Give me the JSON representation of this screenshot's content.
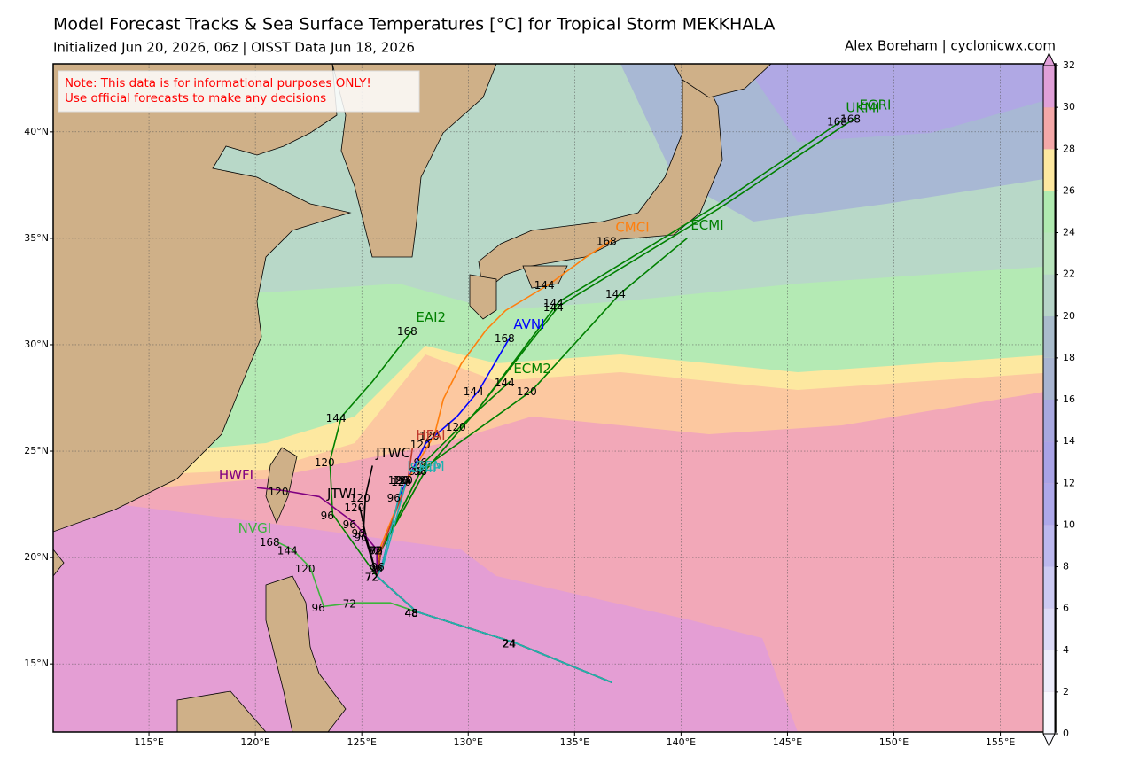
{
  "title": "Model Forecast Tracks & Sea Surface Temperatures [°C] for Tropical Storm MEKKHALA",
  "subtitle": "Initialized Jun 20, 2026, 06z | OISST Data Jun 18, 2026",
  "credit": "Alex Boreham | cyclonicwx.com",
  "note": [
    "Note: This data is for informational purposes ONLY!",
    "Use official forecasts to make any decisions"
  ],
  "map": {
    "xlim": [
      110.5,
      157.6
    ],
    "ylim": [
      11.8,
      43.2
    ],
    "grid": true,
    "xticks": [
      {
        "value": 115,
        "label": "115°E"
      },
      {
        "value": 120,
        "label": "120°E"
      },
      {
        "value": 125,
        "label": "125°E"
      },
      {
        "value": 130,
        "label": "130°E"
      },
      {
        "value": 135,
        "label": "135°E"
      },
      {
        "value": 140,
        "label": "140°E"
      },
      {
        "value": 145,
        "label": "145°E"
      },
      {
        "value": 150,
        "label": "150°E"
      },
      {
        "value": 155,
        "label": "155°E"
      }
    ],
    "yticks": [
      {
        "value": 15,
        "label": "15°N"
      },
      {
        "value": 20,
        "label": "20°N"
      },
      {
        "value": 25,
        "label": "25°N"
      },
      {
        "value": 30,
        "label": "30°N"
      },
      {
        "value": 35,
        "label": "35°N"
      },
      {
        "value": 40,
        "label": "40°N"
      }
    ],
    "tracks": [
      {
        "name": "JTWC",
        "color": "#000000",
        "lon": [
          136.75,
          132.17,
          127.58,
          125.71,
          125.08,
          125.17,
          125.5
        ],
        "lat": [
          14.13,
          16.0,
          17.45,
          19.12,
          21.2,
          22.86,
          24.32
        ],
        "hours": [
          null,
          24,
          48,
          72,
          96,
          120,
          null
        ]
      },
      {
        "name": "JTWI",
        "color": "#000000",
        "lon": [
          136.75,
          132.17,
          127.58,
          125.71,
          125.2,
          124.9
        ],
        "lat": [
          14.13,
          16.0,
          17.45,
          19.12,
          21.0,
          22.4
        ],
        "hours": [
          null,
          24,
          48,
          72,
          96,
          120
        ]
      },
      {
        "name": "AVNI",
        "color": "#0000ff",
        "lon": [
          136.75,
          132.17,
          127.58,
          125.71,
          125.92,
          126.75,
          128.0,
          129.46,
          130.5,
          131.96
        ],
        "lat": [
          14.13,
          16.0,
          17.45,
          19.12,
          19.53,
          22.86,
          25.36,
          26.61,
          27.85,
          30.35
        ],
        "hours": [
          null,
          24,
          48,
          null,
          72,
          96,
          120,
          null,
          144,
          168
        ]
      },
      {
        "name": "CMCI",
        "color": "#ff7f0e",
        "lon": [
          136.75,
          132.17,
          127.58,
          125.71,
          125.83,
          127.17,
          128.42,
          128.83,
          129.67,
          130.83,
          131.75,
          133.83,
          135.5,
          136.75
        ],
        "lat": [
          14.13,
          16.0,
          17.45,
          19.12,
          20.37,
          23.69,
          25.77,
          27.44,
          29.1,
          30.68,
          31.6,
          32.85,
          34.09,
          34.92
        ],
        "hours": [
          null,
          24,
          48,
          null,
          72,
          96,
          120,
          null,
          null,
          null,
          null,
          144,
          null,
          168
        ]
      },
      {
        "name": "ECMI",
        "color": "#008000",
        "lon": [
          136.75,
          132.17,
          127.58,
          125.71,
          125.92,
          127.79,
          133.0,
          137.17,
          140.29
        ],
        "lat": [
          14.13,
          16.0,
          17.45,
          19.12,
          20.37,
          24.11,
          27.85,
          32.43,
          35.01
        ],
        "hours": [
          null,
          24,
          48,
          null,
          72,
          96,
          120,
          144,
          null
        ]
      },
      {
        "name": "UKMI",
        "color": "#008000",
        "lon": [
          136.75,
          132.17,
          127.58,
          125.71,
          125.92,
          128.0,
          130.5,
          134.25,
          141.75,
          147.58
        ],
        "lat": [
          14.13,
          16.0,
          17.45,
          19.12,
          20.37,
          24.11,
          27.02,
          32.01,
          36.59,
          40.54
        ],
        "hours": [
          null,
          24,
          48,
          null,
          72,
          96,
          null,
          144,
          null,
          168
        ]
      },
      {
        "name": "EGRI",
        "color": "#008000",
        "lon": [
          136.75,
          132.17,
          127.58,
          125.71,
          125.92,
          128.0,
          130.5,
          134.25,
          141.75,
          148.21
        ],
        "lat": [
          14.13,
          16.0,
          17.45,
          19.12,
          20.37,
          24.11,
          27.02,
          31.81,
          36.38,
          40.67
        ],
        "hours": [
          null,
          24,
          48,
          null,
          72,
          96,
          null,
          144,
          null,
          168
        ]
      },
      {
        "name": "EAI2",
        "color": "#008000",
        "lon": [
          136.75,
          132.17,
          127.58,
          125.71,
          123.63,
          123.5,
          124.04,
          125.5,
          127.38
        ],
        "lat": [
          14.13,
          16.0,
          17.45,
          19.12,
          22.03,
          24.53,
          26.61,
          28.27,
          30.68
        ],
        "hours": [
          null,
          24,
          48,
          72,
          96,
          120,
          144,
          null,
          168
        ]
      },
      {
        "name": "ECM2",
        "color": "#008000",
        "lon": [
          136.75,
          132.17,
          127.58,
          125.71,
          125.92,
          128.0,
          129.67,
          131.96
        ],
        "lat": [
          14.13,
          16.0,
          17.45,
          19.12,
          20.37,
          24.53,
          26.19,
          28.27
        ],
        "hours": [
          null,
          24,
          48,
          null,
          72,
          96,
          120,
          144
        ]
      },
      {
        "name": "HWFI",
        "color": "#800080",
        "lon": [
          136.75,
          132.17,
          127.58,
          125.71,
          125.71,
          124.67,
          123.0,
          121.33,
          120.08
        ],
        "lat": [
          14.13,
          16.0,
          17.45,
          19.12,
          20.37,
          21.61,
          22.86,
          23.15,
          23.28
        ],
        "hours": [
          null,
          24,
          48,
          72,
          null,
          96,
          null,
          120,
          null
        ]
      },
      {
        "name": "NVGI",
        "color": "#3cb43c",
        "lon": [
          136.75,
          132.17,
          127.58,
          126.33,
          124.67,
          123.21,
          122.58,
          121.75,
          120.92
        ],
        "lat": [
          14.13,
          16.0,
          17.45,
          17.87,
          17.87,
          17.7,
          19.53,
          20.37,
          20.78
        ],
        "hours": [
          null,
          24,
          48,
          null,
          72,
          96,
          120,
          144,
          168
        ]
      },
      {
        "name": "HFAI",
        "color": "#c0392b",
        "lon": [
          136.75,
          132.17,
          127.58,
          125.71,
          125.92,
          127.17,
          127.38
        ],
        "lat": [
          14.13,
          16.0,
          17.45,
          19.12,
          20.37,
          23.69,
          25.15
        ],
        "hours": [
          null,
          24,
          48,
          72,
          96,
          120,
          null
        ]
      },
      {
        "name": "LGEM",
        "color": "#20b0b0",
        "lon": [
          136.75,
          132.17,
          127.58,
          125.71,
          125.92,
          126.96
        ],
        "lat": [
          14.13,
          16.0,
          17.45,
          19.12,
          19.53,
          23.69
        ],
        "hours": [
          null,
          24,
          48,
          72,
          96,
          120
        ]
      },
      {
        "name": "SHIP",
        "color": "#20b0b0",
        "lon": [
          136.75,
          132.17,
          127.58,
          125.71,
          126.0,
          127.1
        ],
        "lat": [
          14.13,
          16.0,
          17.45,
          19.12,
          19.6,
          23.6
        ],
        "hours": [
          null,
          24,
          48,
          72,
          96,
          120
        ]
      }
    ]
  },
  "colorbar": {
    "ticks": [
      0,
      2,
      4,
      6,
      8,
      10,
      12,
      14,
      16,
      18,
      20,
      22,
      24,
      26,
      28,
      30,
      32
    ],
    "colors": [
      "#f8f8fe",
      "#ececfa",
      "#dcdaf6",
      "#cccaf2",
      "#bcb8ee",
      "#aea8ea",
      "#a9a3e6",
      "#a8a8e0",
      "#a8b4d0",
      "#a9bccc",
      "#b6d4c8",
      "#b8e4bc",
      "#b0eab0",
      "#fde8a0",
      "#f4a8a8",
      "#e0a0d8"
    ]
  }
}
